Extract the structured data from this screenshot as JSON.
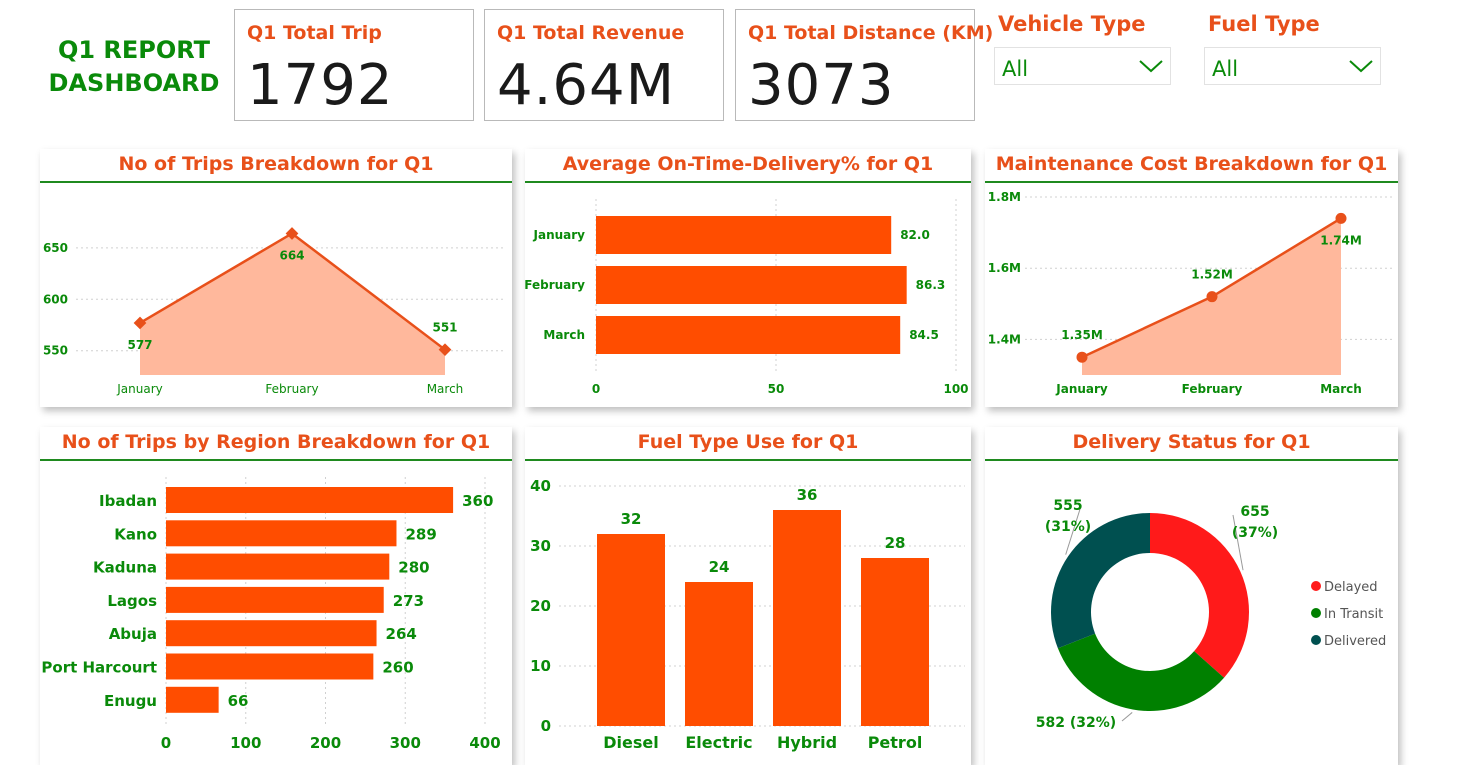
{
  "dashboard": {
    "title_line1": "Q1 REPORT",
    "title_line2": "DASHBOARD"
  },
  "kpis": [
    {
      "label": "Q1 Total Trip",
      "value": "1792"
    },
    {
      "label": "Q1 Total Revenue",
      "value": "4.64M"
    },
    {
      "label": "Q1 Total Distance (KM)",
      "value": "3073"
    }
  ],
  "slicers": {
    "vehicle_type": {
      "label": "Vehicle Type",
      "value": "All",
      "icon": "chevron-down-icon"
    },
    "fuel_type": {
      "label": "Fuel Type",
      "value": "All",
      "icon": "chevron-down-icon"
    }
  },
  "colors": {
    "accent": "#e8501a",
    "bar": "#ff4d00",
    "green": "#0a8a0a",
    "area_fill": "#ffb89c",
    "delayed": "#ff1a1a",
    "in_transit": "#008000",
    "delivered": "#005050"
  },
  "chart_data": [
    {
      "id": "trips_month",
      "type": "area",
      "title": "No of Trips Breakdown for Q1",
      "categories": [
        "January",
        "February",
        "March"
      ],
      "values": [
        577,
        664,
        551
      ],
      "value_labels": [
        "577",
        "664",
        "551"
      ],
      "yticks": [
        "550",
        "600",
        "650"
      ],
      "ytick_values": [
        550,
        600,
        650
      ],
      "ylim": [
        540,
        680
      ],
      "grid": true
    },
    {
      "id": "otd_month",
      "type": "bar",
      "orientation": "horizontal",
      "title": "Average On-Time-Delivery% for Q1",
      "categories": [
        "January",
        "February",
        "March"
      ],
      "values": [
        82.0,
        86.3,
        84.5
      ],
      "value_labels": [
        "82.0",
        "86.3",
        "84.5"
      ],
      "xticks": [
        "0",
        "50",
        "100"
      ],
      "xtick_values": [
        0,
        50,
        100
      ],
      "xlim": [
        0,
        100
      ],
      "grid": true
    },
    {
      "id": "maintenance_month",
      "type": "area",
      "title": "Maintenance Cost Breakdown for Q1",
      "categories": [
        "January",
        "February",
        "March"
      ],
      "values": [
        1.35,
        1.52,
        1.74
      ],
      "value_labels": [
        "1.35M",
        "1.52M",
        "1.74M"
      ],
      "yticks": [
        "1.4M",
        "1.6M",
        "1.8M"
      ],
      "ytick_values": [
        1.4,
        1.6,
        1.8
      ],
      "ylim": [
        1.3,
        1.8
      ],
      "grid": true
    },
    {
      "id": "trips_region",
      "type": "bar",
      "orientation": "horizontal",
      "title": "No of Trips by Region Breakdown for Q1",
      "categories": [
        "Ibadan",
        "Kano",
        "Kaduna",
        "Lagos",
        "Abuja",
        "Port Harcourt",
        "Enugu"
      ],
      "values": [
        360,
        289,
        280,
        273,
        264,
        260,
        66
      ],
      "value_labels": [
        "360",
        "289",
        "280",
        "273",
        "264",
        "260",
        "66"
      ],
      "xticks": [
        "0",
        "100",
        "200",
        "300",
        "400"
      ],
      "xtick_values": [
        0,
        100,
        200,
        300,
        400
      ],
      "xlim": [
        0,
        400
      ],
      "grid": true
    },
    {
      "id": "fuel_type",
      "type": "bar",
      "orientation": "vertical",
      "title": "Fuel Type Use for Q1",
      "categories": [
        "Diesel",
        "Electric",
        "Hybrid",
        "Petrol"
      ],
      "values": [
        32,
        24,
        36,
        28
      ],
      "value_labels": [
        "32",
        "24",
        "36",
        "28"
      ],
      "yticks": [
        "0",
        "10",
        "20",
        "30",
        "40"
      ],
      "ytick_values": [
        0,
        10,
        20,
        30,
        40
      ],
      "ylim": [
        0,
        40
      ],
      "grid": true
    },
    {
      "id": "delivery_status",
      "type": "pie",
      "donut": true,
      "title": "Delivery Status for Q1",
      "categories": [
        "Delayed",
        "In Transit",
        "Delivered"
      ],
      "values": [
        655,
        582,
        555
      ],
      "slice_labels": [
        {
          "value": "655",
          "pct": "(37%)"
        },
        {
          "value": "582 (32%)",
          "pct": ""
        },
        {
          "value": "555",
          "pct": "(31%)"
        }
      ],
      "legend": "right",
      "legend_entries": [
        "Delayed",
        "In Transit",
        "Delivered"
      ]
    }
  ]
}
